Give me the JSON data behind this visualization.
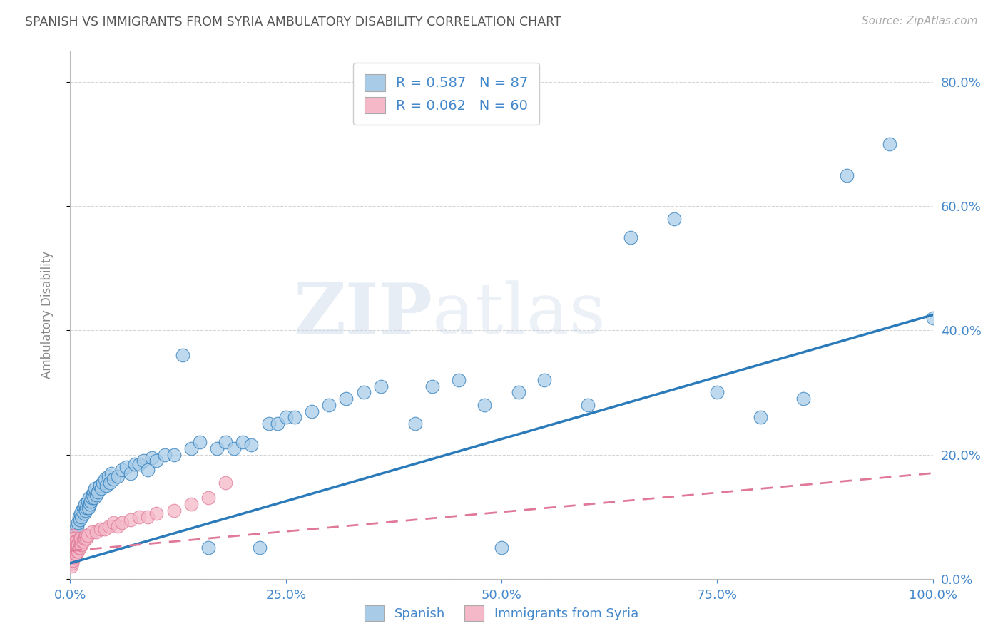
{
  "title": "SPANISH VS IMMIGRANTS FROM SYRIA AMBULATORY DISABILITY CORRELATION CHART",
  "source": "Source: ZipAtlas.com",
  "ylabel": "Ambulatory Disability",
  "watermark": "ZIPatlas",
  "legend_label1": "Spanish",
  "legend_label2": "Immigrants from Syria",
  "r1": 0.587,
  "n1": 87,
  "r2": 0.062,
  "n2": 60,
  "blue_color": "#a8cce8",
  "pink_color": "#f4b8c8",
  "blue_line_color": "#2b7bba",
  "pink_line_color": "#e07898",
  "title_color": "#555555",
  "axis_color": "#4488cc",
  "background_color": "#ffffff",
  "grid_color": "#cccccc",
  "spanish_x": [
    0.001,
    0.002,
    0.003,
    0.004,
    0.005,
    0.006,
    0.007,
    0.008,
    0.009,
    0.01,
    0.011,
    0.012,
    0.013,
    0.014,
    0.015,
    0.016,
    0.017,
    0.018,
    0.019,
    0.02,
    0.021,
    0.022,
    0.023,
    0.024,
    0.025,
    0.026,
    0.027,
    0.028,
    0.029,
    0.03,
    0.032,
    0.034,
    0.036,
    0.038,
    0.04,
    0.042,
    0.044,
    0.046,
    0.048,
    0.05,
    0.055,
    0.06,
    0.065,
    0.07,
    0.075,
    0.08,
    0.085,
    0.09,
    0.095,
    0.1,
    0.11,
    0.12,
    0.13,
    0.14,
    0.15,
    0.16,
    0.17,
    0.18,
    0.19,
    0.2,
    0.21,
    0.22,
    0.23,
    0.24,
    0.25,
    0.26,
    0.28,
    0.3,
    0.32,
    0.34,
    0.36,
    0.4,
    0.42,
    0.45,
    0.48,
    0.5,
    0.52,
    0.55,
    0.6,
    0.65,
    0.7,
    0.75,
    0.8,
    0.85,
    0.9,
    0.95,
    1.0
  ],
  "spanish_y": [
    0.05,
    0.06,
    0.055,
    0.07,
    0.065,
    0.08,
    0.075,
    0.085,
    0.09,
    0.1,
    0.095,
    0.105,
    0.1,
    0.11,
    0.115,
    0.105,
    0.12,
    0.11,
    0.115,
    0.125,
    0.115,
    0.13,
    0.12,
    0.125,
    0.13,
    0.135,
    0.14,
    0.13,
    0.145,
    0.135,
    0.14,
    0.15,
    0.145,
    0.155,
    0.16,
    0.15,
    0.165,
    0.155,
    0.17,
    0.16,
    0.165,
    0.175,
    0.18,
    0.17,
    0.185,
    0.185,
    0.19,
    0.175,
    0.195,
    0.19,
    0.2,
    0.2,
    0.36,
    0.21,
    0.22,
    0.05,
    0.21,
    0.22,
    0.21,
    0.22,
    0.215,
    0.05,
    0.25,
    0.25,
    0.26,
    0.26,
    0.27,
    0.28,
    0.29,
    0.3,
    0.31,
    0.25,
    0.31,
    0.32,
    0.28,
    0.05,
    0.3,
    0.32,
    0.28,
    0.55,
    0.58,
    0.3,
    0.26,
    0.29,
    0.65,
    0.7,
    0.42
  ],
  "syria_x": [
    0.001,
    0.001,
    0.001,
    0.002,
    0.002,
    0.002,
    0.002,
    0.003,
    0.003,
    0.003,
    0.003,
    0.003,
    0.004,
    0.004,
    0.004,
    0.004,
    0.005,
    0.005,
    0.005,
    0.005,
    0.006,
    0.006,
    0.006,
    0.007,
    0.007,
    0.007,
    0.008,
    0.008,
    0.009,
    0.009,
    0.01,
    0.01,
    0.011,
    0.011,
    0.012,
    0.012,
    0.013,
    0.014,
    0.015,
    0.016,
    0.017,
    0.018,
    0.019,
    0.02,
    0.025,
    0.03,
    0.035,
    0.04,
    0.045,
    0.05,
    0.055,
    0.06,
    0.07,
    0.08,
    0.09,
    0.1,
    0.12,
    0.14,
    0.16,
    0.18
  ],
  "syria_y": [
    0.02,
    0.03,
    0.04,
    0.025,
    0.035,
    0.045,
    0.055,
    0.03,
    0.04,
    0.05,
    0.06,
    0.07,
    0.035,
    0.045,
    0.055,
    0.065,
    0.035,
    0.045,
    0.055,
    0.065,
    0.04,
    0.05,
    0.06,
    0.04,
    0.05,
    0.06,
    0.045,
    0.055,
    0.045,
    0.055,
    0.05,
    0.06,
    0.05,
    0.065,
    0.055,
    0.065,
    0.055,
    0.06,
    0.06,
    0.065,
    0.065,
    0.07,
    0.065,
    0.07,
    0.075,
    0.075,
    0.08,
    0.08,
    0.085,
    0.09,
    0.085,
    0.09,
    0.095,
    0.1,
    0.1,
    0.105,
    0.11,
    0.12,
    0.13,
    0.155
  ],
  "blue_trendline_x": [
    0.0,
    1.0
  ],
  "blue_trendline_y": [
    0.025,
    0.425
  ],
  "pink_trendline_x": [
    0.0,
    1.0
  ],
  "pink_trendline_y": [
    0.045,
    0.17
  ],
  "xlim": [
    0.0,
    1.0
  ],
  "ylim": [
    0.0,
    0.85
  ],
  "xticks": [
    0.0,
    0.25,
    0.5,
    0.75,
    1.0
  ],
  "xticklabels": [
    "0.0%",
    "25.0%",
    "50.0%",
    "75.0%",
    "100.0%"
  ],
  "yticks": [
    0.0,
    0.2,
    0.4,
    0.6,
    0.8
  ],
  "yticklabels": [
    "0.0%",
    "20.0%",
    "40.0%",
    "60.0%",
    "80.0%"
  ]
}
